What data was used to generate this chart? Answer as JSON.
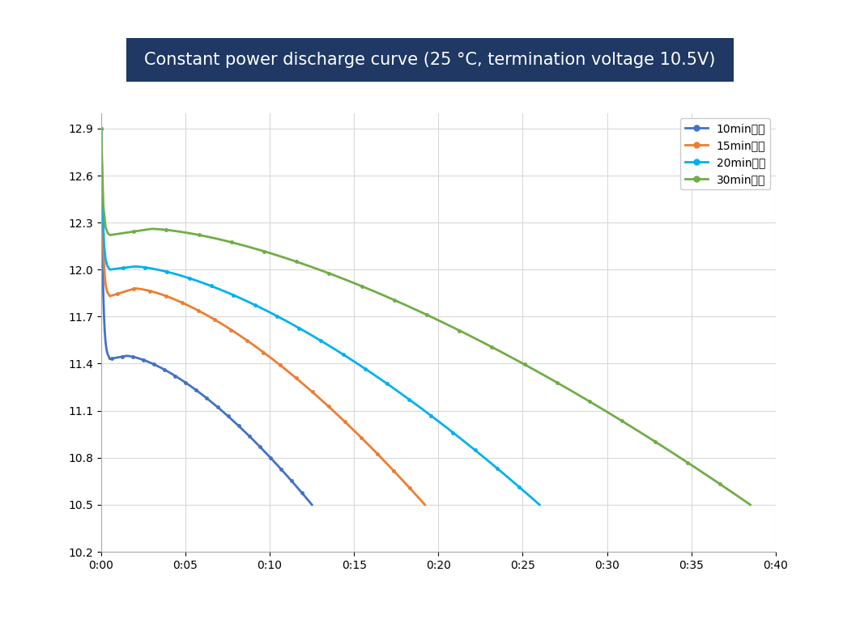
{
  "title": "Constant power discharge curve (25 °C, termination voltage 10.5V)",
  "title_bg_color": "#1f3864",
  "title_text_color": "#ffffff",
  "title_fontsize": 15,
  "ylim": [
    10.2,
    2.95
  ],
  "yticks": [
    10.2,
    10.5,
    10.8,
    11.1,
    11.4,
    11.7,
    12.0,
    12.3,
    12.6,
    12.9
  ],
  "xtick_labels": [
    "0:00",
    "0:05",
    "0:10",
    "0:15",
    "0:20",
    "0:25",
    "0:30",
    "0:35",
    "0:40"
  ],
  "xtick_values": [
    0,
    5,
    10,
    15,
    20,
    25,
    30,
    35,
    40
  ],
  "xlim": [
    0,
    40
  ],
  "grid_color": "#d9d9d9",
  "background_color": "#ffffff",
  "series": [
    {
      "label": "10min功率",
      "color": "#4472c4",
      "duration_min": 12,
      "start_voltage_spike": 12.9,
      "settle_voltage": 11.43,
      "peak_voltage": 11.45,
      "peak_time": 1.5,
      "end_voltage": 10.5,
      "end_time": 12.5
    },
    {
      "label": "15min功率",
      "color": "#ed7d31",
      "duration_min": 19,
      "start_voltage_spike": 12.9,
      "settle_voltage": 11.83,
      "peak_voltage": 11.88,
      "peak_time": 2.0,
      "end_voltage": 10.5,
      "end_time": 19.2
    },
    {
      "label": "20min功率",
      "color": "#00b0f0",
      "duration_min": 26,
      "start_voltage_spike": 12.9,
      "settle_voltage": 12.0,
      "peak_voltage": 12.02,
      "peak_time": 2.0,
      "end_voltage": 10.5,
      "end_time": 26.0
    },
    {
      "label": "30min功率",
      "color": "#70ad47",
      "duration_min": 38.5,
      "start_voltage_spike": 12.9,
      "settle_voltage": 12.22,
      "peak_voltage": 12.26,
      "peak_time": 3.0,
      "end_voltage": 10.5,
      "end_time": 38.5
    }
  ],
  "legend_fontsize": 10,
  "tick_fontsize": 10,
  "figsize": [
    10.41,
    7.75
  ],
  "dpi": 100
}
